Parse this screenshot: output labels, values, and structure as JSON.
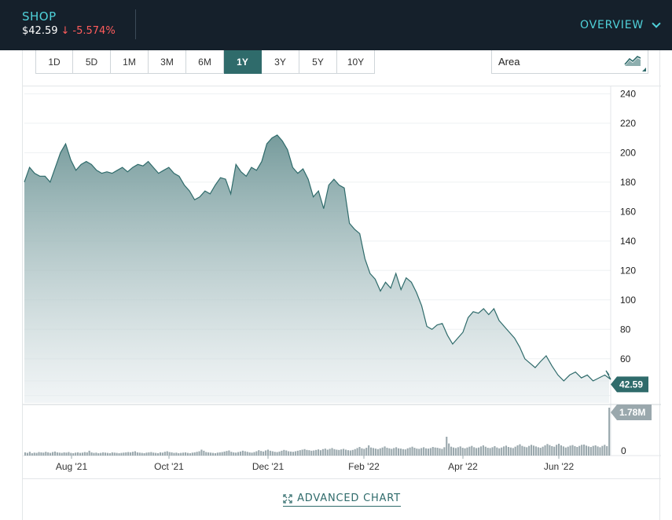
{
  "header": {
    "symbol": "SHOP",
    "price": "$42.59",
    "change_arrow": "↓",
    "change": "-5.574%",
    "overview_label": "OVERVIEW"
  },
  "toolbar": {
    "ranges": [
      "1D",
      "5D",
      "1M",
      "3M",
      "6M",
      "1Y",
      "3Y",
      "5Y",
      "10Y"
    ],
    "active_range": "1Y",
    "chart_type": "Area"
  },
  "footer": {
    "advanced_chart_label": "ADVANCED CHART"
  },
  "colors": {
    "header_bg": "#15202b",
    "accent": "#4fd1d9",
    "down": "#ff5c5c",
    "line": "#2f6b6b",
    "fill": "#7fa3a5"
  },
  "chart_data": {
    "type": "area",
    "price_axis": {
      "ylim": [
        30,
        245
      ],
      "ticks": [
        240,
        220,
        200,
        180,
        160,
        140,
        120,
        100,
        80,
        60
      ],
      "last_value_label": "42.59"
    },
    "volume_axis": {
      "ticks": [
        0
      ],
      "max_label": "1.78M",
      "max": 1.78
    },
    "x_ticks": [
      "Aug '21",
      "Oct '21",
      "Dec '21",
      "Feb '22",
      "Apr '22",
      "Jun '22"
    ],
    "price_series": [
      {
        "t": 0.0,
        "v": 180
      },
      {
        "t": 0.01,
        "v": 190
      },
      {
        "t": 0.02,
        "v": 186
      },
      {
        "t": 0.03,
        "v": 184
      },
      {
        "t": 0.04,
        "v": 184
      },
      {
        "t": 0.05,
        "v": 180
      },
      {
        "t": 0.06,
        "v": 190
      },
      {
        "t": 0.07,
        "v": 200
      },
      {
        "t": 0.08,
        "v": 206
      },
      {
        "t": 0.09,
        "v": 195
      },
      {
        "t": 0.1,
        "v": 188
      },
      {
        "t": 0.11,
        "v": 192
      },
      {
        "t": 0.12,
        "v": 194
      },
      {
        "t": 0.13,
        "v": 192
      },
      {
        "t": 0.14,
        "v": 188
      },
      {
        "t": 0.15,
        "v": 186
      },
      {
        "t": 0.16,
        "v": 187
      },
      {
        "t": 0.17,
        "v": 186
      },
      {
        "t": 0.18,
        "v": 188
      },
      {
        "t": 0.19,
        "v": 190
      },
      {
        "t": 0.2,
        "v": 187
      },
      {
        "t": 0.21,
        "v": 190
      },
      {
        "t": 0.22,
        "v": 192
      },
      {
        "t": 0.23,
        "v": 191
      },
      {
        "t": 0.24,
        "v": 194
      },
      {
        "t": 0.25,
        "v": 190
      },
      {
        "t": 0.26,
        "v": 186
      },
      {
        "t": 0.27,
        "v": 188
      },
      {
        "t": 0.28,
        "v": 190
      },
      {
        "t": 0.29,
        "v": 186
      },
      {
        "t": 0.3,
        "v": 184
      },
      {
        "t": 0.31,
        "v": 178
      },
      {
        "t": 0.32,
        "v": 174
      },
      {
        "t": 0.33,
        "v": 168
      },
      {
        "t": 0.34,
        "v": 170
      },
      {
        "t": 0.35,
        "v": 174
      },
      {
        "t": 0.36,
        "v": 172
      },
      {
        "t": 0.37,
        "v": 178
      },
      {
        "t": 0.38,
        "v": 183
      },
      {
        "t": 0.39,
        "v": 182
      },
      {
        "t": 0.4,
        "v": 172
      },
      {
        "t": 0.41,
        "v": 192
      },
      {
        "t": 0.42,
        "v": 187
      },
      {
        "t": 0.43,
        "v": 184
      },
      {
        "t": 0.44,
        "v": 190
      },
      {
        "t": 0.45,
        "v": 188
      },
      {
        "t": 0.46,
        "v": 194
      },
      {
        "t": 0.47,
        "v": 206
      },
      {
        "t": 0.48,
        "v": 210
      },
      {
        "t": 0.49,
        "v": 212
      },
      {
        "t": 0.5,
        "v": 208
      },
      {
        "t": 0.51,
        "v": 202
      },
      {
        "t": 0.52,
        "v": 190
      },
      {
        "t": 0.53,
        "v": 186
      },
      {
        "t": 0.54,
        "v": 189
      },
      {
        "t": 0.55,
        "v": 182
      },
      {
        "t": 0.56,
        "v": 170
      },
      {
        "t": 0.57,
        "v": 174
      },
      {
        "t": 0.58,
        "v": 162
      },
      {
        "t": 0.59,
        "v": 178
      },
      {
        "t": 0.6,
        "v": 182
      },
      {
        "t": 0.61,
        "v": 178
      },
      {
        "t": 0.62,
        "v": 176
      },
      {
        "t": 0.63,
        "v": 152
      },
      {
        "t": 0.64,
        "v": 148
      },
      {
        "t": 0.65,
        "v": 145
      },
      {
        "t": 0.66,
        "v": 128
      },
      {
        "t": 0.67,
        "v": 118
      },
      {
        "t": 0.68,
        "v": 114
      },
      {
        "t": 0.69,
        "v": 106
      },
      {
        "t": 0.7,
        "v": 112
      },
      {
        "t": 0.71,
        "v": 108
      },
      {
        "t": 0.72,
        "v": 118
      },
      {
        "t": 0.73,
        "v": 107
      },
      {
        "t": 0.74,
        "v": 115
      },
      {
        "t": 0.75,
        "v": 112
      },
      {
        "t": 0.76,
        "v": 105
      },
      {
        "t": 0.77,
        "v": 96
      },
      {
        "t": 0.78,
        "v": 82
      },
      {
        "t": 0.79,
        "v": 80
      },
      {
        "t": 0.8,
        "v": 83
      },
      {
        "t": 0.81,
        "v": 84
      },
      {
        "t": 0.82,
        "v": 76
      },
      {
        "t": 0.83,
        "v": 70
      },
      {
        "t": 0.84,
        "v": 74
      },
      {
        "t": 0.85,
        "v": 78
      },
      {
        "t": 0.86,
        "v": 88
      },
      {
        "t": 0.87,
        "v": 92
      },
      {
        "t": 0.88,
        "v": 91
      },
      {
        "t": 0.89,
        "v": 94
      },
      {
        "t": 0.9,
        "v": 90
      },
      {
        "t": 0.91,
        "v": 94
      },
      {
        "t": 0.92,
        "v": 86
      },
      {
        "t": 0.93,
        "v": 82
      },
      {
        "t": 0.94,
        "v": 78
      },
      {
        "t": 0.95,
        "v": 74
      },
      {
        "t": 0.96,
        "v": 68
      },
      {
        "t": 0.97,
        "v": 60
      },
      {
        "t": 0.98,
        "v": 57
      },
      {
        "t": 0.99,
        "v": 54
      },
      {
        "t": 1.0,
        "v": 58
      }
    ],
    "price_series_tail": [
      {
        "t": 0.88,
        "v": 60
      },
      {
        "t": 0.89,
        "v": 62
      },
      {
        "t": 0.9,
        "v": 55
      },
      {
        "t": 0.91,
        "v": 49
      },
      {
        "t": 0.92,
        "v": 45
      },
      {
        "t": 0.93,
        "v": 49
      },
      {
        "t": 0.94,
        "v": 51
      },
      {
        "t": 0.95,
        "v": 47
      },
      {
        "t": 0.96,
        "v": 49
      },
      {
        "t": 0.97,
        "v": 45
      },
      {
        "t": 0.98,
        "v": 47
      },
      {
        "t": 0.99,
        "v": 49
      },
      {
        "t": 1.0,
        "v": 46
      }
    ],
    "volume_series": [
      0.12,
      0.1,
      0.14,
      0.09,
      0.11,
      0.1,
      0.13,
      0.12,
      0.11,
      0.14,
      0.12,
      0.1,
      0.13,
      0.15,
      0.12,
      0.11,
      0.1,
      0.12,
      0.11,
      0.13,
      0.1,
      0.09,
      0.11,
      0.12,
      0.1,
      0.11,
      0.13,
      0.12,
      0.18,
      0.12,
      0.1,
      0.11,
      0.09,
      0.1,
      0.12,
      0.11,
      0.1,
      0.09,
      0.12,
      0.11,
      0.1,
      0.09,
      0.1,
      0.11,
      0.12,
      0.13,
      0.12,
      0.14,
      0.16,
      0.12,
      0.11,
      0.1,
      0.09,
      0.11,
      0.12,
      0.13,
      0.11,
      0.1,
      0.09,
      0.12,
      0.11,
      0.14,
      0.16,
      0.13,
      0.12,
      0.1,
      0.11,
      0.09,
      0.1,
      0.11,
      0.12,
      0.1,
      0.09,
      0.11,
      0.12,
      0.14,
      0.16,
      0.22,
      0.18,
      0.13,
      0.12,
      0.11,
      0.1,
      0.09,
      0.11,
      0.12,
      0.13,
      0.15,
      0.17,
      0.19,
      0.14,
      0.12,
      0.11,
      0.13,
      0.15,
      0.18,
      0.16,
      0.14,
      0.12,
      0.11,
      0.13,
      0.16,
      0.2,
      0.17,
      0.15,
      0.19,
      0.22,
      0.18,
      0.16,
      0.14,
      0.13,
      0.15,
      0.18,
      0.21,
      0.19,
      0.16,
      0.15,
      0.14,
      0.16,
      0.18,
      0.2,
      0.22,
      0.24,
      0.21,
      0.2,
      0.18,
      0.19,
      0.21,
      0.23,
      0.2,
      0.24,
      0.26,
      0.22,
      0.25,
      0.28,
      0.24,
      0.22,
      0.21,
      0.23,
      0.25,
      0.22,
      0.2,
      0.19,
      0.21,
      0.24,
      0.28,
      0.32,
      0.27,
      0.25,
      0.29,
      0.38,
      0.3,
      0.28,
      0.26,
      0.24,
      0.27,
      0.3,
      0.34,
      0.29,
      0.27,
      0.25,
      0.28,
      0.31,
      0.27,
      0.26,
      0.24,
      0.23,
      0.27,
      0.3,
      0.33,
      0.29,
      0.26,
      0.25,
      0.28,
      0.31,
      0.27,
      0.26,
      0.28,
      0.32,
      0.3,
      0.29,
      0.27,
      0.25,
      0.31,
      0.7,
      0.45,
      0.33,
      0.3,
      0.28,
      0.31,
      0.34,
      0.29,
      0.27,
      0.3,
      0.33,
      0.36,
      0.31,
      0.28,
      0.3,
      0.34,
      0.38,
      0.33,
      0.29,
      0.28,
      0.31,
      0.35,
      0.3,
      0.27,
      0.3,
      0.34,
      0.37,
      0.32,
      0.3,
      0.28,
      0.33,
      0.38,
      0.42,
      0.36,
      0.33,
      0.31,
      0.36,
      0.4,
      0.37,
      0.34,
      0.31,
      0.29,
      0.33,
      0.38,
      0.43,
      0.39,
      0.35,
      0.33,
      0.4,
      0.44,
      0.38,
      0.34,
      0.3,
      0.33,
      0.37,
      0.39,
      0.35,
      0.32,
      0.36,
      0.4,
      0.41,
      0.37,
      0.34,
      0.32,
      0.36,
      0.38,
      0.34,
      0.31,
      0.36,
      0.4,
      0.35,
      1.78
    ]
  }
}
